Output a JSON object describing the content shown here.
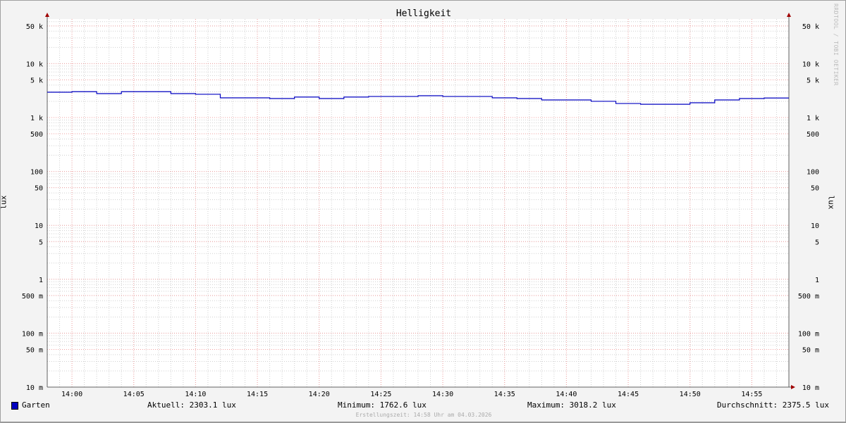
{
  "chart_data": {
    "type": "line",
    "title": "Helligkeit",
    "ylabel": "lux",
    "y_scale": "log",
    "ylim": [
      0.01,
      60000
    ],
    "xlim": [
      "13:58",
      "14:58"
    ],
    "grid": true,
    "y_ticks": [
      {
        "value": 50000,
        "label": "50 k"
      },
      {
        "value": 10000,
        "label": "10 k"
      },
      {
        "value": 5000,
        "label": "5 k"
      },
      {
        "value": 1000,
        "label": "1 k"
      },
      {
        "value": 500,
        "label": "500"
      },
      {
        "value": 100,
        "label": "100"
      },
      {
        "value": 50,
        "label": "50"
      },
      {
        "value": 10,
        "label": "10"
      },
      {
        "value": 5,
        "label": "5"
      },
      {
        "value": 1,
        "label": "1"
      },
      {
        "value": 0.5,
        "label": "500 m"
      },
      {
        "value": 0.1,
        "label": "100 m"
      },
      {
        "value": 0.05,
        "label": "50 m"
      },
      {
        "value": 0.01,
        "label": "10 m"
      }
    ],
    "x_ticks": [
      "14:00",
      "14:05",
      "14:10",
      "14:15",
      "14:20",
      "14:25",
      "14:30",
      "14:35",
      "14:40",
      "14:45",
      "14:50",
      "14:55"
    ],
    "series": [
      {
        "name": "Garten",
        "color": "#0000c0",
        "step": true,
        "x": [
          "13:58",
          "14:00",
          "14:02",
          "14:04",
          "14:06",
          "14:08",
          "14:10",
          "14:12",
          "14:14",
          "14:16",
          "14:18",
          "14:20",
          "14:22",
          "14:24",
          "14:26",
          "14:28",
          "14:30",
          "14:32",
          "14:34",
          "14:36",
          "14:38",
          "14:40",
          "14:42",
          "14:44",
          "14:46",
          "14:48",
          "14:50",
          "14:52",
          "14:54",
          "14:56"
        ],
        "values": [
          2950,
          3018,
          2780,
          3018,
          3018,
          2780,
          2700,
          2320,
          2320,
          2250,
          2400,
          2250,
          2400,
          2460,
          2460,
          2540,
          2460,
          2460,
          2320,
          2250,
          2120,
          2120,
          2000,
          1820,
          1763,
          1763,
          1880,
          2120,
          2250,
          2303
        ]
      }
    ]
  },
  "legend": {
    "series_name": "Garten",
    "current": "Aktuell: 2303.1 lux",
    "minimum": "Minimum: 1762.6 lux",
    "maximum": "Maximum: 3018.2 lux",
    "average": "Durchschnitt: 2375.5 lux"
  },
  "footer": "Erstellungszeit: 14:58 Uhr am 04.03.2026",
  "watermark": "RRDTOOL / TOBI OETIKER",
  "colors": {
    "major_grid": "#f0a0a0",
    "minor_grid": "#d0d0d0",
    "axis": "#606060",
    "arrow": "#a00000"
  }
}
